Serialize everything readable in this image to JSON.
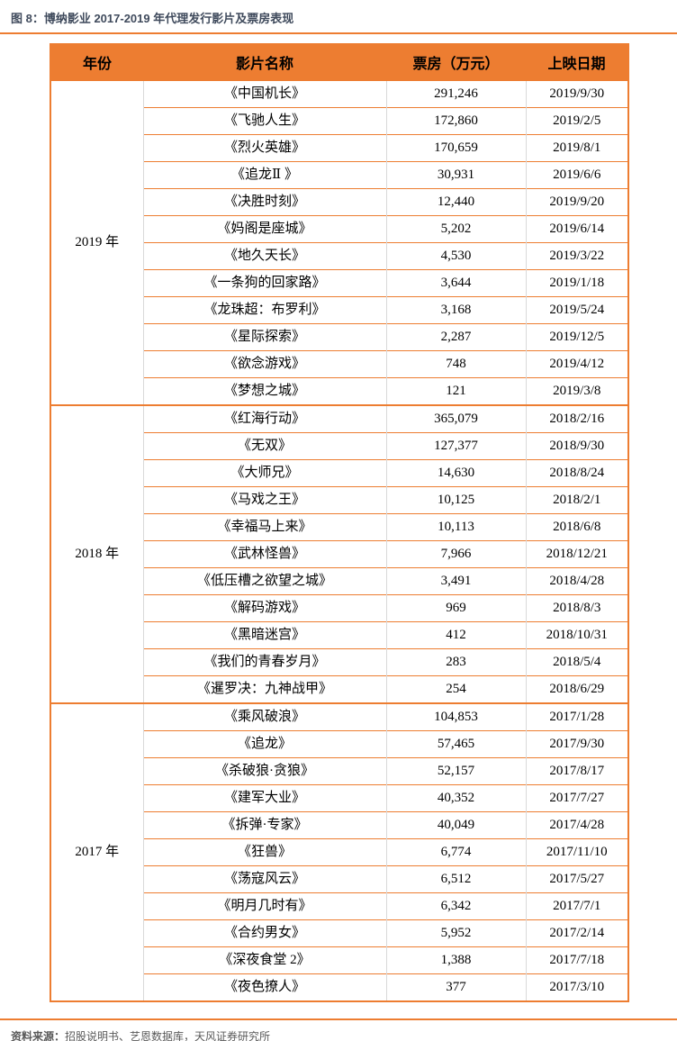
{
  "title": "图 8：博纳影业 2017-2019 年代理发行影片及票房表现",
  "colors": {
    "accent": "#ED7D31",
    "grid": "#D9D9D9",
    "title_color": "#3F4A5C",
    "muted": "#595959"
  },
  "table": {
    "headers": [
      "年份",
      "影片名称",
      "票房（万元）",
      "上映日期"
    ],
    "groups": [
      {
        "year": "2019 年",
        "rows": [
          [
            "《中国机长》",
            "291,246",
            "2019/9/30"
          ],
          [
            "《飞驰人生》",
            "172,860",
            "2019/2/5"
          ],
          [
            "《烈火英雄》",
            "170,659",
            "2019/8/1"
          ],
          [
            "《追龙Ⅱ 》",
            "30,931",
            "2019/6/6"
          ],
          [
            "《决胜时刻》",
            "12,440",
            "2019/9/20"
          ],
          [
            "《妈阁是座城》",
            "5,202",
            "2019/6/14"
          ],
          [
            "《地久天长》",
            "4,530",
            "2019/3/22"
          ],
          [
            "《一条狗的回家路》",
            "3,644",
            "2019/1/18"
          ],
          [
            "《龙珠超：布罗利》",
            "3,168",
            "2019/5/24"
          ],
          [
            "《星际探索》",
            "2,287",
            "2019/12/5"
          ],
          [
            "《欲念游戏》",
            "748",
            "2019/4/12"
          ],
          [
            "《梦想之城》",
            "121",
            "2019/3/8"
          ]
        ]
      },
      {
        "year": "2018 年",
        "rows": [
          [
            "《红海行动》",
            "365,079",
            "2018/2/16"
          ],
          [
            "《无双》",
            "127,377",
            "2018/9/30"
          ],
          [
            "《大师兄》",
            "14,630",
            "2018/8/24"
          ],
          [
            "《马戏之王》",
            "10,125",
            "2018/2/1"
          ],
          [
            "《幸福马上来》",
            "10,113",
            "2018/6/8"
          ],
          [
            "《武林怪兽》",
            "7,966",
            "2018/12/21"
          ],
          [
            "《低压槽之欲望之城》",
            "3,491",
            "2018/4/28"
          ],
          [
            "《解码游戏》",
            "969",
            "2018/8/3"
          ],
          [
            "《黑暗迷宫》",
            "412",
            "2018/10/31"
          ],
          [
            "《我们的青春岁月》",
            "283",
            "2018/5/4"
          ],
          [
            "《暹罗决：九神战甲》",
            "254",
            "2018/6/29"
          ]
        ]
      },
      {
        "year": "2017 年",
        "rows": [
          [
            "《乘风破浪》",
            "104,853",
            "2017/1/28"
          ],
          [
            "《追龙》",
            "57,465",
            "2017/9/30"
          ],
          [
            "《杀破狼·贪狼》",
            "52,157",
            "2017/8/17"
          ],
          [
            "《建军大业》",
            "40,352",
            "2017/7/27"
          ],
          [
            "《拆弹·专家》",
            "40,049",
            "2017/4/28"
          ],
          [
            "《狂兽》",
            "6,774",
            "2017/11/10"
          ],
          [
            "《荡寇风云》",
            "6,512",
            "2017/5/27"
          ],
          [
            "《明月几时有》",
            "6,342",
            "2017/7/1"
          ],
          [
            "《合约男女》",
            "5,952",
            "2017/2/14"
          ],
          [
            "《深夜食堂 2》",
            "1,388",
            "2017/7/18"
          ],
          [
            "《夜色撩人》",
            "377",
            "2017/3/10"
          ]
        ]
      }
    ]
  },
  "footer": {
    "label": "资料来源：",
    "text": "招股说明书、艺恩数据库，天风证券研究所"
  }
}
